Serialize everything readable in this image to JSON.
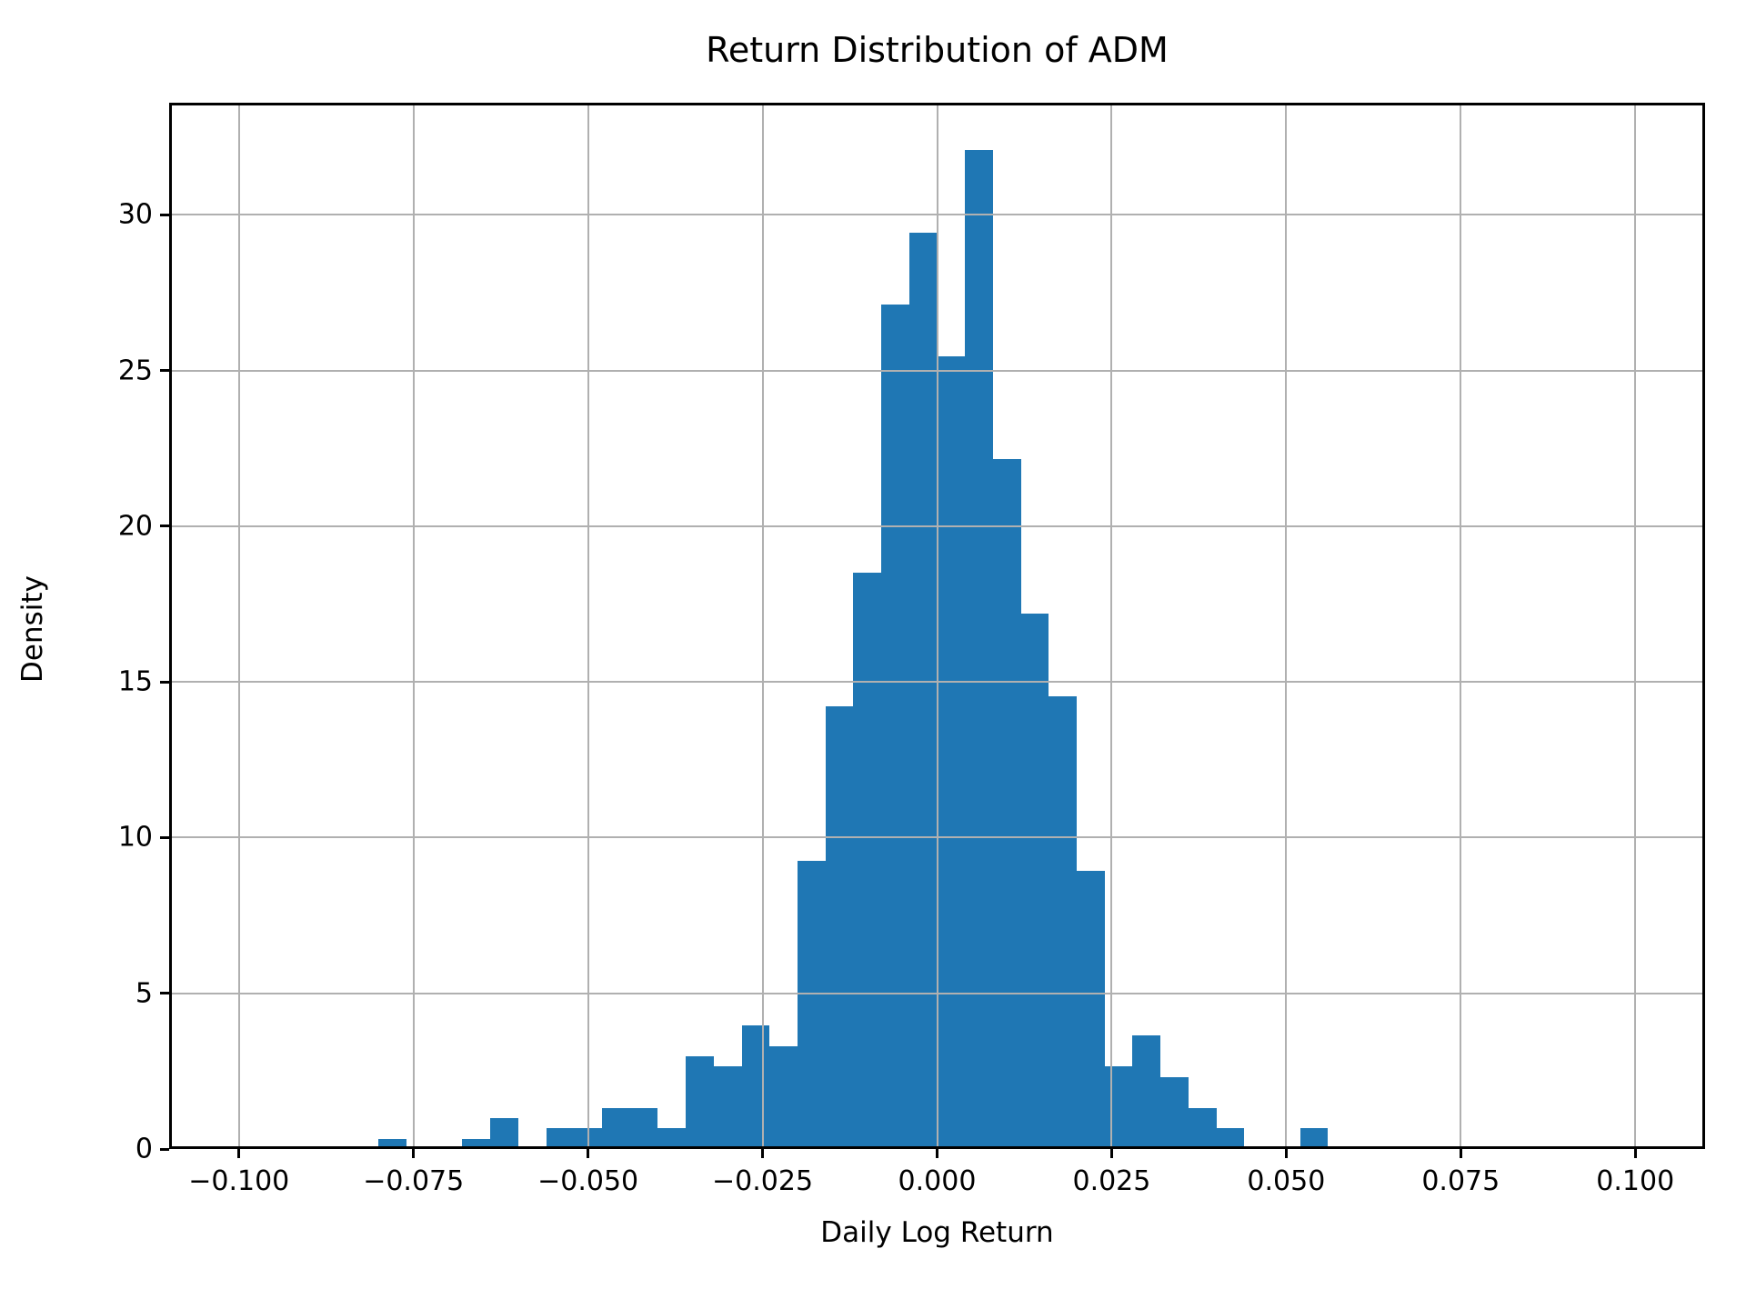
{
  "figure": {
    "title": "Return Distribution of ADM",
    "xlabel": "Daily Log Return",
    "ylabel": "Density"
  },
  "chart_data": {
    "type": "bar",
    "subtype": "histogram",
    "title": "Return Distribution of ADM",
    "xlabel": "Daily Log Return",
    "ylabel": "Density",
    "grid": true,
    "legend": false,
    "bar_color": "#1f77b4",
    "grid_color": "#b0b0b0",
    "axis_color": "#000000",
    "xlim": [
      -0.11,
      0.11
    ],
    "ylim": [
      0,
      33.6
    ],
    "bin_width": 0.004,
    "bins": [
      {
        "left": -0.08,
        "density": 0.33
      },
      {
        "left": -0.076,
        "density": 0.0
      },
      {
        "left": -0.072,
        "density": 0.0
      },
      {
        "left": -0.068,
        "density": 0.33
      },
      {
        "left": -0.064,
        "density": 0.99
      },
      {
        "left": -0.06,
        "density": 0.0
      },
      {
        "left": -0.056,
        "density": 0.66
      },
      {
        "left": -0.052,
        "density": 0.66
      },
      {
        "left": -0.048,
        "density": 1.32
      },
      {
        "left": -0.044,
        "density": 1.32
      },
      {
        "left": -0.04,
        "density": 0.66
      },
      {
        "left": -0.036,
        "density": 2.98
      },
      {
        "left": -0.032,
        "density": 2.65
      },
      {
        "left": -0.028,
        "density": 3.97
      },
      {
        "left": -0.024,
        "density": 3.31
      },
      {
        "left": -0.02,
        "density": 9.26
      },
      {
        "left": -0.016,
        "density": 14.22
      },
      {
        "left": -0.012,
        "density": 18.52
      },
      {
        "left": -0.008,
        "density": 27.12
      },
      {
        "left": -0.004,
        "density": 29.43
      },
      {
        "left": 0.0,
        "density": 25.46
      },
      {
        "left": 0.004,
        "density": 32.08
      },
      {
        "left": 0.008,
        "density": 22.16
      },
      {
        "left": 0.012,
        "density": 17.2
      },
      {
        "left": 0.016,
        "density": 14.55
      },
      {
        "left": 0.02,
        "density": 8.93
      },
      {
        "left": 0.024,
        "density": 2.65
      },
      {
        "left": 0.028,
        "density": 3.64
      },
      {
        "left": 0.032,
        "density": 2.31
      },
      {
        "left": 0.036,
        "density": 1.32
      },
      {
        "left": 0.04,
        "density": 0.66
      },
      {
        "left": 0.044,
        "density": 0.0
      },
      {
        "left": 0.048,
        "density": 0.0
      },
      {
        "left": 0.052,
        "density": 0.66
      }
    ],
    "xticks": [
      {
        "value": -0.1,
        "label": "−0.100"
      },
      {
        "value": -0.075,
        "label": "−0.075"
      },
      {
        "value": -0.05,
        "label": "−0.050"
      },
      {
        "value": -0.025,
        "label": "−0.025"
      },
      {
        "value": 0.0,
        "label": "0.000"
      },
      {
        "value": 0.025,
        "label": "0.025"
      },
      {
        "value": 0.05,
        "label": "0.050"
      },
      {
        "value": 0.075,
        "label": "0.075"
      },
      {
        "value": 0.1,
        "label": "0.100"
      }
    ],
    "yticks": [
      {
        "value": 0,
        "label": "0"
      },
      {
        "value": 5,
        "label": "5"
      },
      {
        "value": 10,
        "label": "10"
      },
      {
        "value": 15,
        "label": "15"
      },
      {
        "value": 20,
        "label": "20"
      },
      {
        "value": 25,
        "label": "25"
      },
      {
        "value": 30,
        "label": "30"
      }
    ]
  }
}
